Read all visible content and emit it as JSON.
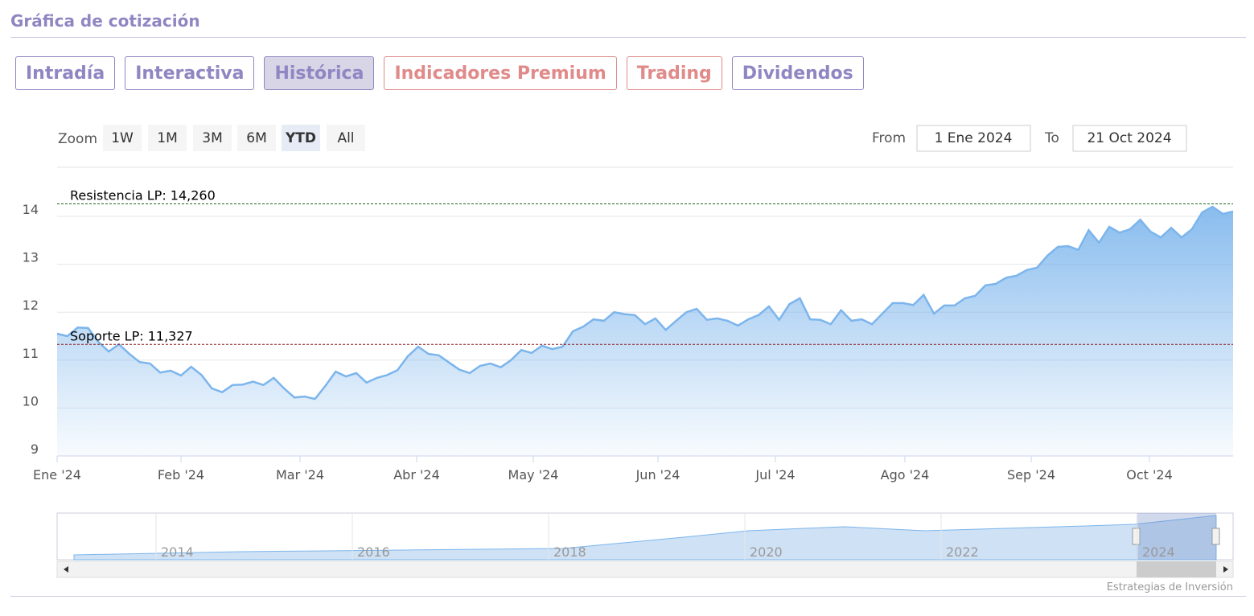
{
  "header": {
    "title": "Gráfica de cotización"
  },
  "tabs": [
    "Intradía",
    "Interactiva",
    "Histórica",
    "Indicadores Premium",
    "Trading",
    "Dividendos"
  ],
  "zoom": {
    "label": "Zoom",
    "buttons": [
      "1W",
      "1M",
      "3M",
      "6M",
      "YTD",
      "All"
    ]
  },
  "range": {
    "from_label": "From",
    "from": "1 Ene 2024",
    "to_label": "To",
    "to": "21 Oct 2024"
  },
  "chart_data": {
    "type": "area",
    "color": "#7cb5ec",
    "x_labels": [
      "Ene '24",
      "Feb '24",
      "Mar '24",
      "Abr '24",
      "May '24",
      "Jun '24",
      "Jul '24",
      "Ago '24",
      "Sep '24",
      "Oct '24"
    ],
    "values": [
      11.55,
      11.5,
      11.68,
      11.67,
      11.38,
      11.18,
      11.33,
      11.13,
      10.96,
      10.93,
      10.74,
      10.78,
      10.68,
      10.86,
      10.69,
      10.41,
      10.33,
      10.48,
      10.49,
      10.55,
      10.48,
      10.63,
      10.41,
      10.22,
      10.24,
      10.19,
      10.46,
      10.76,
      10.66,
      10.73,
      10.53,
      10.63,
      10.69,
      10.79,
      11.08,
      11.28,
      11.13,
      11.1,
      10.95,
      10.8,
      10.73,
      10.88,
      10.93,
      10.85,
      11.0,
      11.21,
      11.15,
      11.3,
      11.23,
      11.28,
      11.6,
      11.7,
      11.85,
      11.82,
      12.0,
      11.96,
      11.94,
      11.75,
      11.87,
      11.63,
      11.82,
      12.0,
      12.07,
      11.84,
      11.87,
      11.82,
      11.72,
      11.85,
      11.94,
      12.12,
      11.84,
      12.17,
      12.29,
      11.85,
      11.84,
      11.75,
      12.04,
      11.82,
      11.85,
      11.75,
      11.97,
      12.19,
      12.19,
      12.15,
      12.36,
      11.97,
      12.14,
      12.14,
      12.29,
      12.34,
      12.56,
      12.59,
      12.72,
      12.76,
      12.88,
      12.93,
      13.18,
      13.36,
      13.38,
      13.3,
      13.71,
      13.45,
      13.78,
      13.66,
      13.73,
      13.93,
      13.68,
      13.56,
      13.76,
      13.56,
      13.73,
      14.08,
      14.2,
      14.05,
      14.1
    ],
    "ylim": [
      9,
      15
    ],
    "yticks": [
      9,
      10,
      11,
      12,
      13,
      14
    ],
    "grid": true,
    "annotations": [
      {
        "label": "Resistencia LP: 14,260",
        "value": 14.26,
        "color": "#1a6b1a"
      },
      {
        "label": "Soporte LP: 11,327",
        "value": 11.327,
        "color": "#8b1a1a"
      }
    ]
  },
  "navigator": {
    "years": [
      "2014",
      "2016",
      "2018",
      "2020",
      "2022",
      "2024"
    ]
  },
  "footer": {
    "credit": "Estrategias de Inversión"
  }
}
